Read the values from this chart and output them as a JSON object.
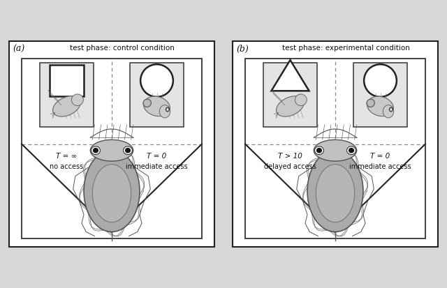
{
  "title_a": "test phase: control condition",
  "title_b": "test phase: experimental condition",
  "label_a": "(a)",
  "label_b": "(b)",
  "panel_a_left_time": "T = ∞",
  "panel_a_left_access": "no access",
  "panel_a_right_time": "T = 0",
  "panel_a_right_access": "immediate access",
  "panel_b_left_time": "T > 10",
  "panel_b_left_access": "delayed access",
  "panel_b_right_time": "T = 0",
  "panel_b_right_access": "immediate access",
  "outer_bg": "#d8d8d8",
  "panel_bg": "#ffffff",
  "card_bg": "#e4e4e4",
  "border_color": "#222222",
  "dashed_color": "#888888",
  "text_color": "#111111",
  "cuttle_body": "#aaaaaa",
  "cuttle_edge": "#555555",
  "cuttle_mantle": "#bbbbbb"
}
